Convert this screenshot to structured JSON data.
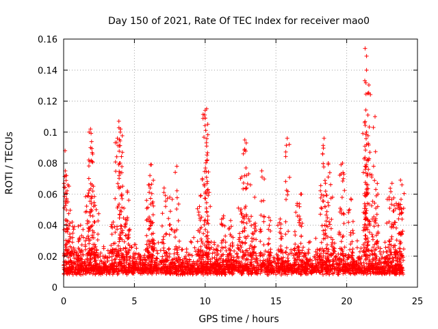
{
  "chart_data": {
    "type": "scatter",
    "title": "Day 150 of 2021, Rate Of TEC Index for receiver mao0",
    "xlabel": "GPS time / hours",
    "ylabel": "ROTI / TECUs",
    "xlim": [
      0,
      25
    ],
    "ylim": [
      0,
      0.16
    ],
    "x_ticks": [
      0,
      5,
      10,
      15,
      20,
      25
    ],
    "x_tick_labels": [
      "0",
      "5",
      "10",
      "15",
      "20",
      "25"
    ],
    "y_ticks": [
      0,
      0.02,
      0.04,
      0.06,
      0.08,
      0.1,
      0.12,
      0.14,
      0.16
    ],
    "y_tick_labels": [
      "0",
      "0.02",
      "0.04",
      "0.06",
      "0.08",
      "0.1",
      "0.12",
      "0.14",
      "0.16"
    ],
    "grid": true,
    "marker": "+",
    "marker_color": "#ff0000",
    "series": [
      {
        "name": "ROTI",
        "color": "#ff0000",
        "baseline": {
          "x_range": [
            0,
            24
          ],
          "y_range": [
            0.004,
            0.03
          ],
          "typical": 0.015
        },
        "peaks": [
          {
            "x": 0.1,
            "y": 0.088
          },
          {
            "x": 0.2,
            "y": 0.072
          },
          {
            "x": 0.3,
            "y": 0.066
          },
          {
            "x": 0.3,
            "y": 0.055
          },
          {
            "x": 0.6,
            "y": 0.042
          },
          {
            "x": 1.2,
            "y": 0.04
          },
          {
            "x": 1.7,
            "y": 0.059
          },
          {
            "x": 1.8,
            "y": 0.1
          },
          {
            "x": 1.9,
            "y": 0.102
          },
          {
            "x": 1.9,
            "y": 0.09
          },
          {
            "x": 2.0,
            "y": 0.081
          },
          {
            "x": 2.1,
            "y": 0.065
          },
          {
            "x": 2.3,
            "y": 0.05
          },
          {
            "x": 3.5,
            "y": 0.042
          },
          {
            "x": 3.8,
            "y": 0.096
          },
          {
            "x": 3.9,
            "y": 0.107
          },
          {
            "x": 4.0,
            "y": 0.1
          },
          {
            "x": 4.0,
            "y": 0.08
          },
          {
            "x": 4.1,
            "y": 0.06
          },
          {
            "x": 4.5,
            "y": 0.045
          },
          {
            "x": 4.5,
            "y": 0.062
          },
          {
            "x": 6.0,
            "y": 0.066
          },
          {
            "x": 6.1,
            "y": 0.072
          },
          {
            "x": 6.2,
            "y": 0.079
          },
          {
            "x": 6.3,
            "y": 0.055
          },
          {
            "x": 7.1,
            "y": 0.064
          },
          {
            "x": 7.5,
            "y": 0.058
          },
          {
            "x": 8.0,
            "y": 0.078
          },
          {
            "x": 9.6,
            "y": 0.052
          },
          {
            "x": 9.8,
            "y": 0.07
          },
          {
            "x": 10.0,
            "y": 0.114
          },
          {
            "x": 10.0,
            "y": 0.109
          },
          {
            "x": 10.1,
            "y": 0.115
          },
          {
            "x": 10.1,
            "y": 0.091
          },
          {
            "x": 10.2,
            "y": 0.063
          },
          {
            "x": 11.3,
            "y": 0.046
          },
          {
            "x": 11.8,
            "y": 0.043
          },
          {
            "x": 12.5,
            "y": 0.07
          },
          {
            "x": 12.7,
            "y": 0.086
          },
          {
            "x": 12.8,
            "y": 0.095
          },
          {
            "x": 12.9,
            "y": 0.093
          },
          {
            "x": 13.2,
            "y": 0.066
          },
          {
            "x": 13.5,
            "y": 0.058
          },
          {
            "x": 14.0,
            "y": 0.075
          },
          {
            "x": 14.5,
            "y": 0.045
          },
          {
            "x": 15.3,
            "y": 0.044
          },
          {
            "x": 15.8,
            "y": 0.096
          },
          {
            "x": 16.5,
            "y": 0.054
          },
          {
            "x": 16.8,
            "y": 0.06
          },
          {
            "x": 18.3,
            "y": 0.086
          },
          {
            "x": 18.4,
            "y": 0.096
          },
          {
            "x": 18.5,
            "y": 0.067
          },
          {
            "x": 18.7,
            "y": 0.08
          },
          {
            "x": 19.0,
            "y": 0.058
          },
          {
            "x": 19.6,
            "y": 0.073
          },
          {
            "x": 19.7,
            "y": 0.08
          },
          {
            "x": 20.3,
            "y": 0.057
          },
          {
            "x": 21.3,
            "y": 0.154
          },
          {
            "x": 21.4,
            "y": 0.149
          },
          {
            "x": 21.4,
            "y": 0.14
          },
          {
            "x": 21.5,
            "y": 0.125
          },
          {
            "x": 21.5,
            "y": 0.111
          },
          {
            "x": 21.4,
            "y": 0.1
          },
          {
            "x": 21.4,
            "y": 0.092
          },
          {
            "x": 21.3,
            "y": 0.078
          },
          {
            "x": 22.0,
            "y": 0.11
          },
          {
            "x": 21.9,
            "y": 0.078
          },
          {
            "x": 22.2,
            "y": 0.06
          },
          {
            "x": 23.0,
            "y": 0.058
          },
          {
            "x": 23.2,
            "y": 0.067
          },
          {
            "x": 23.5,
            "y": 0.054
          },
          {
            "x": 23.8,
            "y": 0.069
          },
          {
            "x": 23.9,
            "y": 0.066
          }
        ]
      }
    ]
  }
}
